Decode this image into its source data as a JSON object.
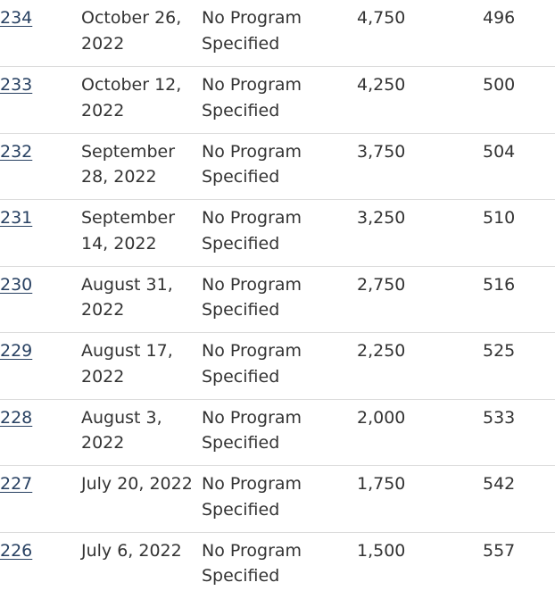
{
  "rows": [
    {
      "round": "234",
      "date": "October 26, 2022",
      "program": "No Program Specified",
      "invitations": "4,750",
      "crs": "496"
    },
    {
      "round": "233",
      "date": "October 12, 2022",
      "program": "No Program Specified",
      "invitations": "4,250",
      "crs": "500"
    },
    {
      "round": "232",
      "date": "September 28, 2022",
      "program": "No Program Specified",
      "invitations": "3,750",
      "crs": "504"
    },
    {
      "round": "231",
      "date": "September 14, 2022",
      "program": "No Program Specified",
      "invitations": "3,250",
      "crs": "510"
    },
    {
      "round": "230",
      "date": "August 31, 2022",
      "program": "No Program Specified",
      "invitations": "2,750",
      "crs": "516"
    },
    {
      "round": "229",
      "date": "August 17, 2022",
      "program": "No Program Specified",
      "invitations": "2,250",
      "crs": "525"
    },
    {
      "round": "228",
      "date": "August 3, 2022",
      "program": "No Program Specified",
      "invitations": "2,000",
      "crs": "533"
    },
    {
      "round": "227",
      "date": "July 20, 2022",
      "program": "No Program Specified",
      "invitations": "1,750",
      "crs": "542"
    },
    {
      "round": "226",
      "date": "July 6, 2022",
      "program": "No Program Specified",
      "invitations": "1,500",
      "crs": "557"
    }
  ]
}
